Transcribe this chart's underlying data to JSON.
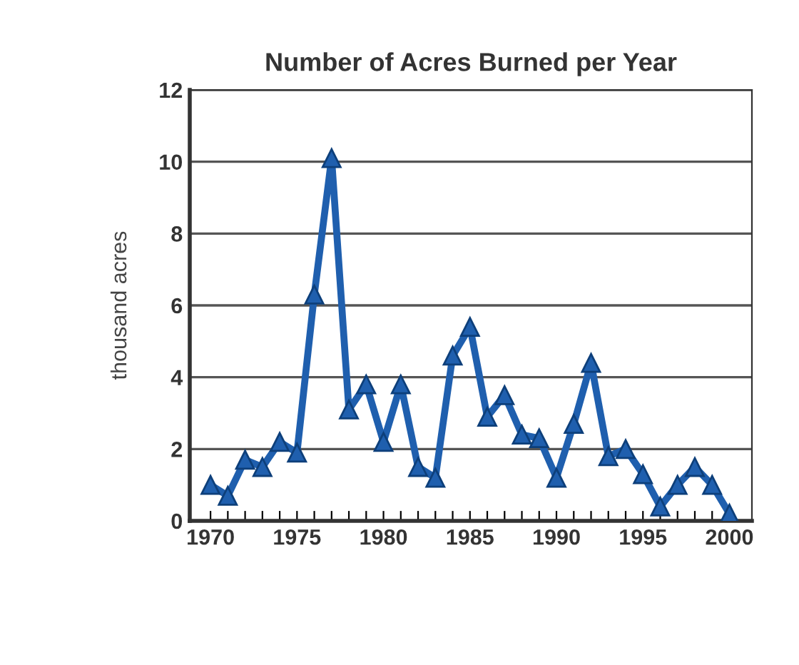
{
  "chart_data": {
    "type": "line",
    "title": "Number of Acres Burned per Year",
    "ylabel": "thousand acres",
    "x": [
      1970,
      1971,
      1972,
      1973,
      1974,
      1975,
      1976,
      1977,
      1978,
      1979,
      1980,
      1981,
      1982,
      1983,
      1984,
      1985,
      1986,
      1987,
      1988,
      1989,
      1990,
      1991,
      1992,
      1993,
      1994,
      1995,
      1996,
      1997,
      1998,
      1999,
      2000
    ],
    "series": [
      {
        "color": "#1f5fae",
        "values": [
          1.0,
          0.7,
          1.7,
          1.5,
          2.2,
          1.9,
          6.3,
          10.1,
          3.1,
          3.8,
          2.2,
          3.8,
          1.5,
          1.2,
          4.6,
          5.4,
          2.9,
          3.5,
          2.4,
          2.3,
          1.2,
          2.7,
          4.4,
          1.8,
          2.0,
          1.3,
          0.4,
          1.0,
          1.5,
          1.0,
          0.2
        ]
      }
    ],
    "xlim": [
      1968.8,
      2001.3
    ],
    "ylim": [
      0,
      12
    ],
    "yticks": [
      0,
      2,
      4,
      6,
      8,
      10,
      12
    ],
    "xticks": [
      1970,
      {
        "value": 1971,
        "label": null
      },
      {
        "value": 1972,
        "label": null
      },
      {
        "value": 1973,
        "label": null
      },
      {
        "value": 1974,
        "label": null
      },
      1975,
      {
        "value": 1976,
        "label": null
      },
      {
        "value": 1977,
        "label": null
      },
      {
        "value": 1978,
        "label": null
      },
      {
        "value": 1979,
        "label": null
      },
      1980,
      {
        "value": 1981,
        "label": null
      },
      {
        "value": 1982,
        "label": null
      },
      {
        "value": 1983,
        "label": null
      },
      {
        "value": 1984,
        "label": null
      },
      1985,
      {
        "value": 1986,
        "label": null
      },
      {
        "value": 1987,
        "label": null
      },
      {
        "value": 1988,
        "label": null
      },
      {
        "value": 1989,
        "label": null
      },
      1990,
      {
        "value": 1991,
        "label": null
      },
      {
        "value": 1992,
        "label": null
      },
      {
        "value": 1993,
        "label": null
      },
      {
        "value": 1994,
        "label": null
      },
      1995,
      {
        "value": 1996,
        "label": null
      },
      {
        "value": 1997,
        "label": null
      },
      {
        "value": 1998,
        "label": null
      },
      {
        "value": 1999,
        "label": null
      },
      2000
    ],
    "grid": "y",
    "marker": "triangle",
    "line_style": "solid",
    "legend": false
  }
}
